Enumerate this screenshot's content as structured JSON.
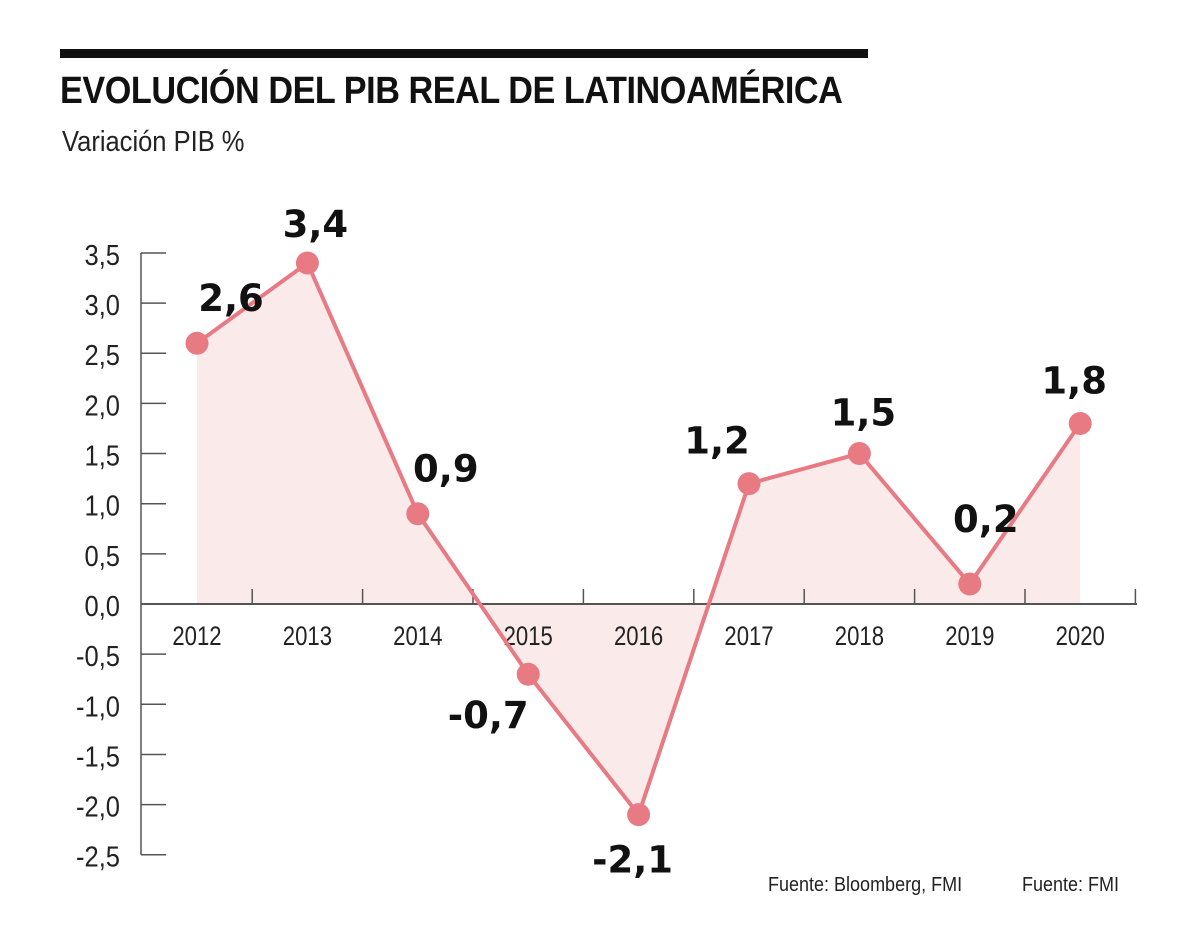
{
  "header": {
    "title": "EVOLUCIÓN DEL PIB REAL DE LATINOAMÉRICA",
    "subtitle": "Variación PIB %"
  },
  "footer": {
    "source_1": "Fuente: Bloomberg, FMI",
    "source_2": "Fuente: FMI"
  },
  "colors": {
    "line": "#e87a84",
    "fill": "#fbeaea",
    "axis": "#555555",
    "text": "#111111"
  },
  "chart_data": {
    "type": "area",
    "title": "EVOLUCIÓN DEL PIB REAL DE LATINOAMÉRICA",
    "subtitle": "Variación PIB %",
    "xlabel": "",
    "ylabel": "",
    "categories": [
      "2012",
      "2013",
      "2014",
      "2015",
      "2016",
      "2017",
      "2018",
      "2019",
      "2020"
    ],
    "series": [
      {
        "name": "Variación PIB %",
        "values": [
          2.6,
          3.4,
          0.9,
          -0.7,
          -2.1,
          1.2,
          1.5,
          0.2,
          1.8
        ],
        "labels": [
          "2,6",
          "3,4",
          "0,9",
          "-0,7",
          "-2,1",
          "1,2",
          "1,5",
          "0,2",
          "1,8"
        ]
      }
    ],
    "ylim": [
      -2.5,
      3.5
    ],
    "yticks": [
      3.5,
      3.0,
      2.5,
      2.0,
      1.5,
      1.0,
      0.5,
      0.0,
      -0.5,
      -1.0,
      -1.5,
      -2.0,
      -2.5
    ],
    "ytick_labels": [
      "3,5",
      "3,0",
      "2,5",
      "2,0",
      "1,5",
      "1,0",
      "0,5",
      "0,0",
      "-0,5",
      "-1,0",
      "-1,5",
      "-2,0",
      "-2,5"
    ],
    "grid": false,
    "legend": "none",
    "markers": true,
    "data_labels": true
  }
}
